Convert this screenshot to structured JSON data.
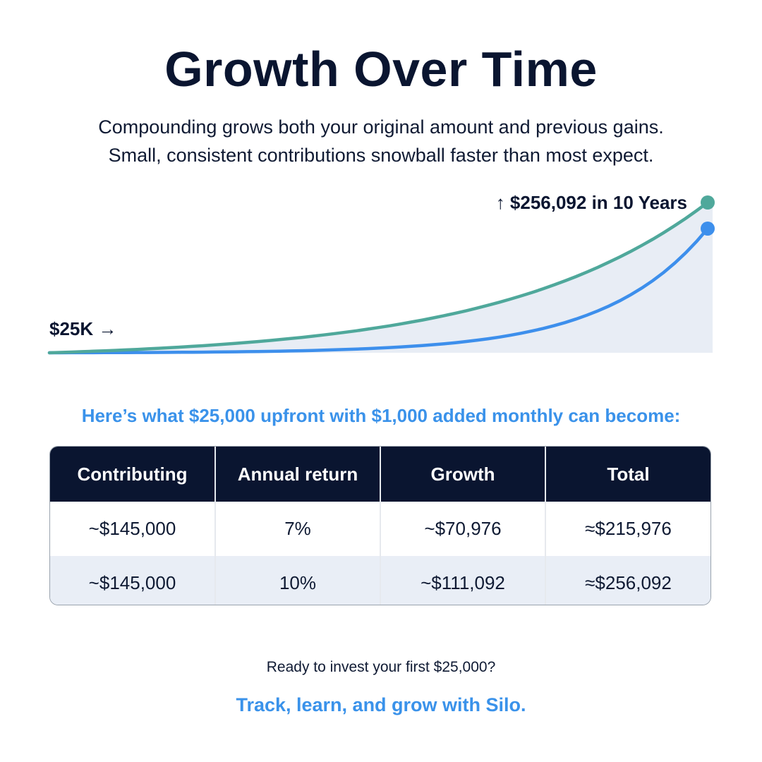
{
  "header": {
    "title": "Growth Over Time",
    "subtitle_line1": "Compounding grows both your original amount and previous gains.",
    "subtitle_line2": "Small, consistent contributions snowball faster than most expect."
  },
  "chart_data": {
    "type": "area",
    "start_label": "$25K →",
    "end_label": "↑ $256,092 in 10 Years",
    "colors": {
      "high": "#4fa89b",
      "low": "#3d8fec",
      "fill": "#e8edf5"
    },
    "series": [
      {
        "key": "high",
        "x": [
          0,
          10
        ],
        "start": 25000,
        "end": 256092
      },
      {
        "key": "low",
        "x": [
          0,
          10
        ],
        "start": 25000,
        "end": 215976
      }
    ]
  },
  "intro": "Here’s what $25,000 upfront with $1,000 added monthly can become:",
  "table": {
    "headers": [
      "Contributing",
      "Annual return",
      "Growth",
      "Total"
    ],
    "rows": [
      [
        "~$145,000",
        "7%",
        "~$70,976",
        "≈$215,976"
      ],
      [
        "~$145,000",
        "10%",
        "~$111,092",
        "≈$256,092"
      ]
    ]
  },
  "footer": {
    "question": "Ready to invest your first $25,000?",
    "cta": "Track, learn, and grow with Silo."
  }
}
